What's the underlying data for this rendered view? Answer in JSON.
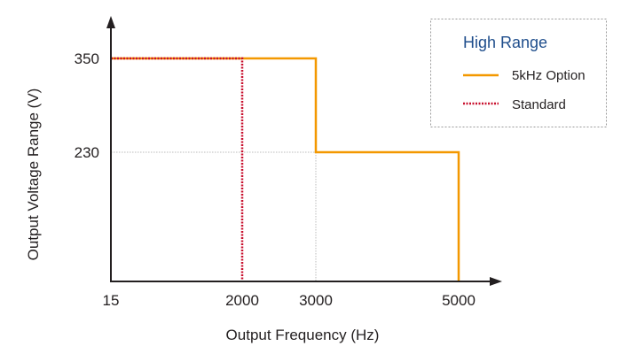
{
  "chart_data": {
    "type": "line",
    "title": "",
    "xlabel": "Output Frequency (Hz)",
    "ylabel": "Output Voltage Range (V)",
    "x_ticks": [
      15,
      2000,
      3000,
      5000
    ],
    "y_ticks": [
      350,
      230
    ],
    "x_tick_labels": [
      "15",
      "2000",
      "3000",
      "5000"
    ],
    "y_tick_labels": [
      "350",
      "230"
    ],
    "grid": "dotted reference lines at 230 V and 3000 Hz",
    "legend": {
      "title": "High Range",
      "placement": "top-right",
      "entries": [
        "5kHz Option",
        "Standard"
      ]
    },
    "series": [
      {
        "name": "5kHz Option",
        "color": "#f39800",
        "style": "solid",
        "points": [
          [
            15,
            350
          ],
          [
            3000,
            350
          ],
          [
            3000,
            230
          ],
          [
            5000,
            230
          ],
          [
            5000,
            0
          ]
        ]
      },
      {
        "name": "Standard",
        "color": "#c8102e",
        "style": "dotted",
        "points": [
          [
            15,
            350
          ],
          [
            2000,
            350
          ],
          [
            2000,
            0
          ]
        ]
      }
    ]
  }
}
